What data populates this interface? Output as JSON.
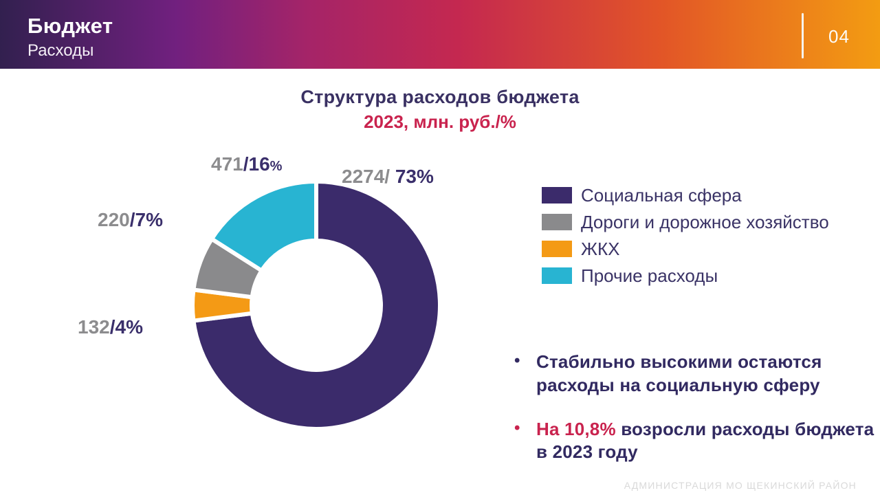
{
  "header": {
    "title": "Бюджет",
    "subtitle": "Расходы",
    "page_number": "04"
  },
  "chart_title": {
    "line1": "Структура расходов бюджета",
    "line2": "2023, млн. руб./%"
  },
  "chart_data": {
    "type": "pie",
    "donut": true,
    "title": "Структура расходов бюджета",
    "subtitle": "2023, млн. руб./%",
    "units": "млн. руб. / %",
    "start_angle_deg": 0,
    "legend_position": "right",
    "segments": [
      {
        "label": "Социальная сфера",
        "value": 2274,
        "pct": 73,
        "color": "#3B2B6B"
      },
      {
        "label": "Дороги и дорожное хозяйство",
        "value": 220,
        "pct": 7,
        "color": "#8A8A8C"
      },
      {
        "label": "ЖКХ",
        "value": 132,
        "pct": 4,
        "color": "#F49A15"
      },
      {
        "label": "Прочие расходы",
        "value": 471,
        "pct": 16,
        "color": "#28B4D2"
      }
    ],
    "clockwise_order": [
      0,
      2,
      1,
      3
    ]
  },
  "callouts": {
    "social": {
      "gray": "2274/ ",
      "navy": "73%",
      "small": ""
    },
    "prochie": {
      "gray": "471",
      "navy": "/16",
      "small": "%"
    },
    "roads": {
      "gray": "220",
      "navy": "/7%",
      "small": ""
    },
    "zhkh": {
      "gray": "132",
      "navy": "/4%",
      "small": ""
    }
  },
  "bullet_char": "•",
  "bullets": [
    {
      "highlight": "",
      "text": "Стабильно высокими остаются расходы на социальную сферу"
    },
    {
      "highlight": "На 10,8%",
      "text": " возросли расходы бюджета в 2023 году"
    }
  ],
  "footer": "АДМИНИСТРАЦИЯ  МО ЩЕКИНСКИЙ РАЙОН",
  "colors": {
    "navy_text": "#3A3163",
    "crimson_accent": "#C9234E",
    "gray_value": "#8C8C8E",
    "header_gradient_start": "#32204F",
    "header_gradient_mid": "#C42850",
    "header_gradient_end": "#F39C12",
    "footer_text": "#D9D9D9"
  }
}
